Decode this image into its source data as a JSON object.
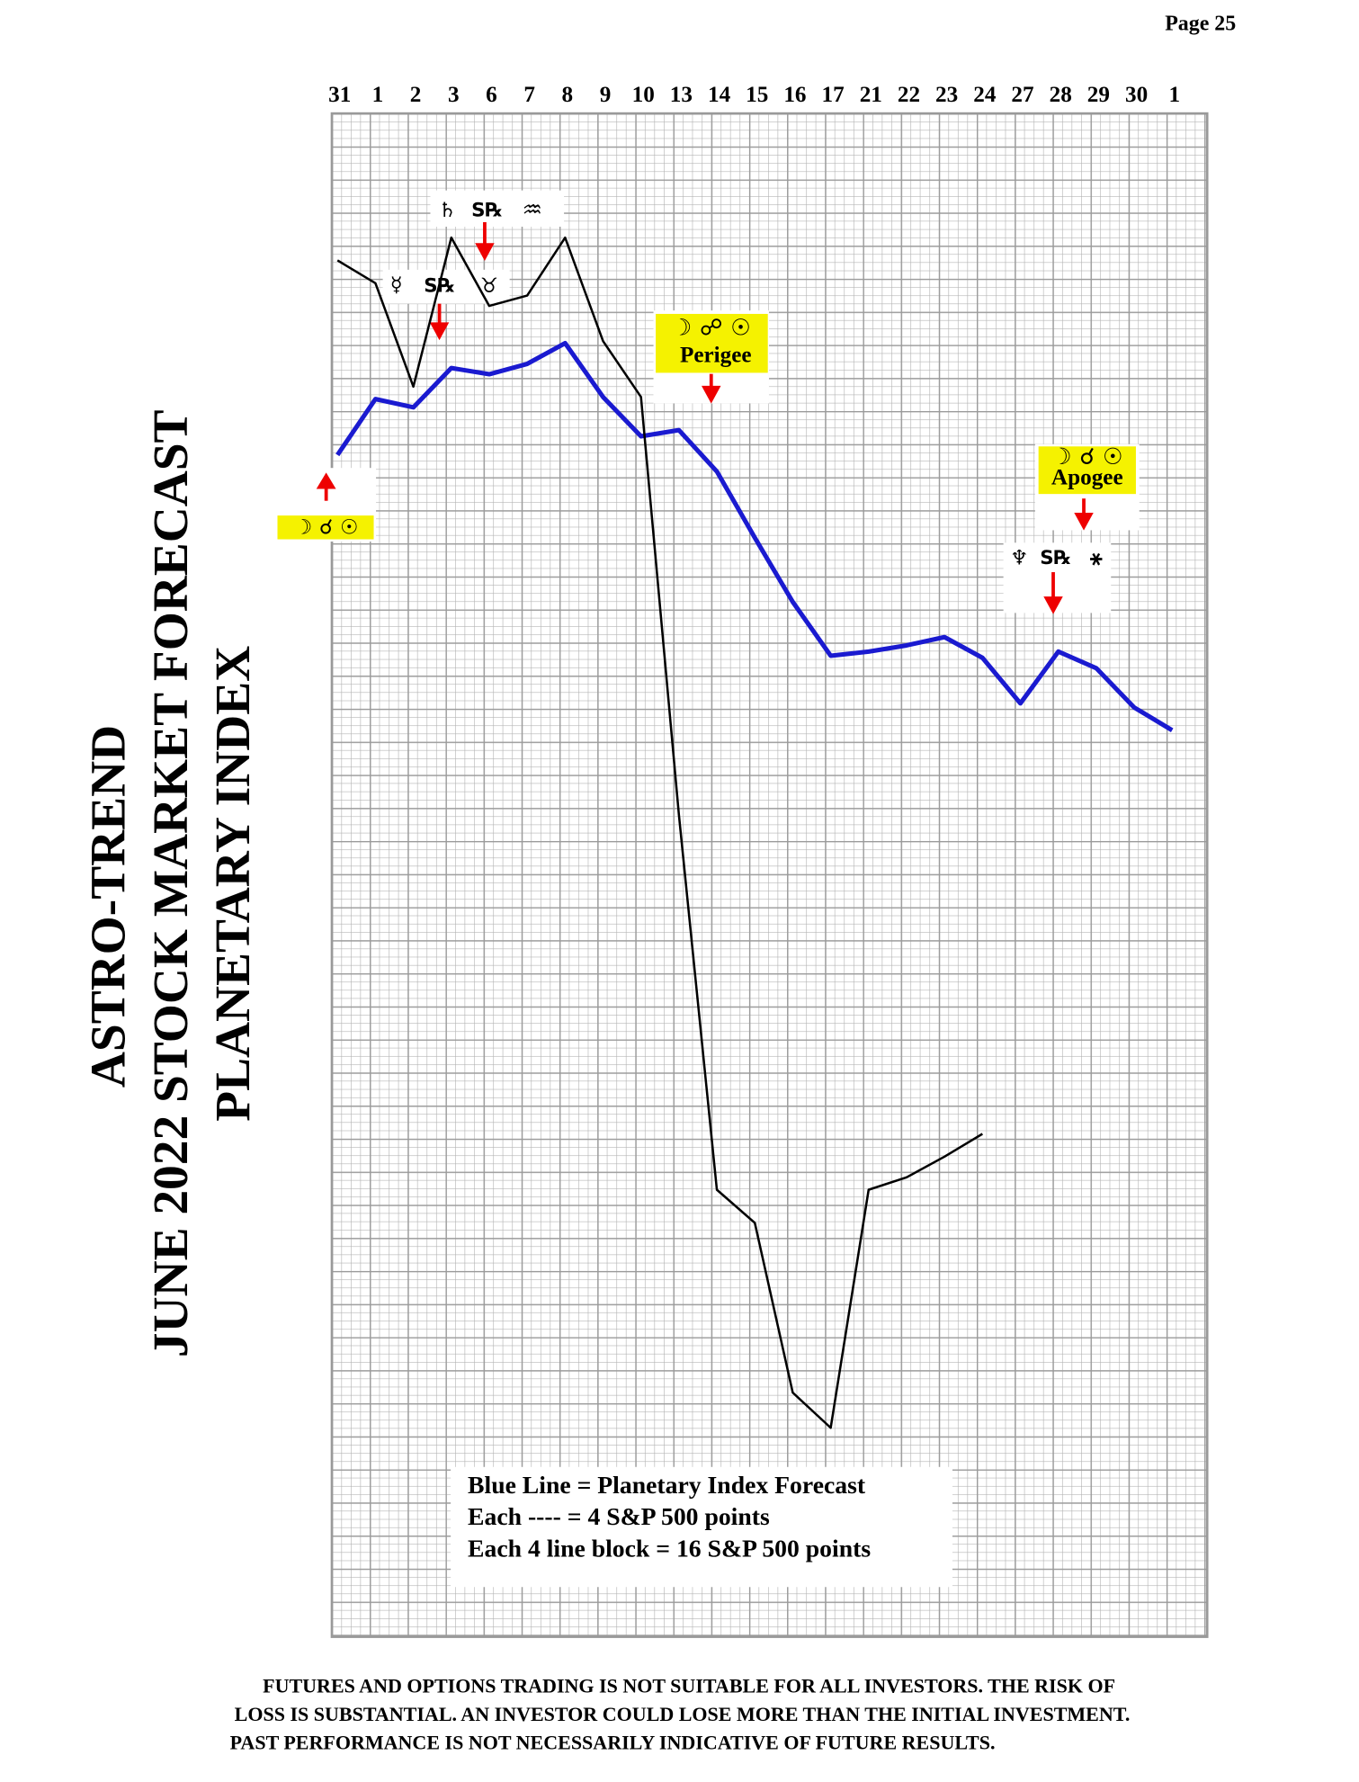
{
  "page_label": "Page  25",
  "chart_data": {
    "type": "line",
    "title_lines": [
      "ASTRO-TREND",
      "JUNE 2022  STOCK MARKET FORECAST",
      "PLANETARY INDEX"
    ],
    "categories": [
      "31",
      "1",
      "2",
      "3",
      "6",
      "7",
      "8",
      "9",
      "10",
      "13",
      "14",
      "15",
      "16",
      "17",
      "21",
      "22",
      "23",
      "24",
      "27",
      "28",
      "29",
      "30",
      "1"
    ],
    "series": [
      {
        "color": "#1a1ad0",
        "values": [
          571,
          598,
          594,
          613,
          610,
          615,
          625,
          599,
          580,
          583,
          563,
          531,
          500,
          474,
          476,
          479,
          483,
          473,
          451,
          476,
          468,
          449,
          438
        ]
      },
      {
        "color": "#000000",
        "values": [
          665,
          654,
          604,
          676,
          643,
          648,
          676,
          626,
          599,
          397,
          216,
          200,
          118,
          101,
          216,
          222,
          232,
          243,
          null,
          null,
          null,
          null,
          null
        ]
      }
    ],
    "ylim": [
      0,
      736
    ],
    "grid": true,
    "annotations": [
      "☽ ☌ ☉",
      "♄",
      "S℞",
      "♒",
      "☿",
      "S℞",
      "♉",
      "☽ ☍ ☉",
      "Perigee",
      "☽ ☌ ☉",
      "Apogee",
      "♆",
      "S℞",
      "⚹"
    ],
    "notes": [
      "Blue Line = Planetary Index Forecast",
      "Each ---- =   4 S&P 500 points",
      "Each 4 line block =  16  S&P 500 points"
    ]
  },
  "disclaimer": [
    "FUTURES AND OPTIONS TRADING IS NOT SUITABLE FOR ALL INVESTORS.  THE RISK OF",
    "LOSS IS SUBSTANTIAL.  AN INVESTOR COULD LOSE MORE THAN THE INITIAL INVESTMENT.",
    "PAST PERFORMANCE IS NOT NECESSARILY INDICATIVE OF FUTURE RESULTS."
  ]
}
